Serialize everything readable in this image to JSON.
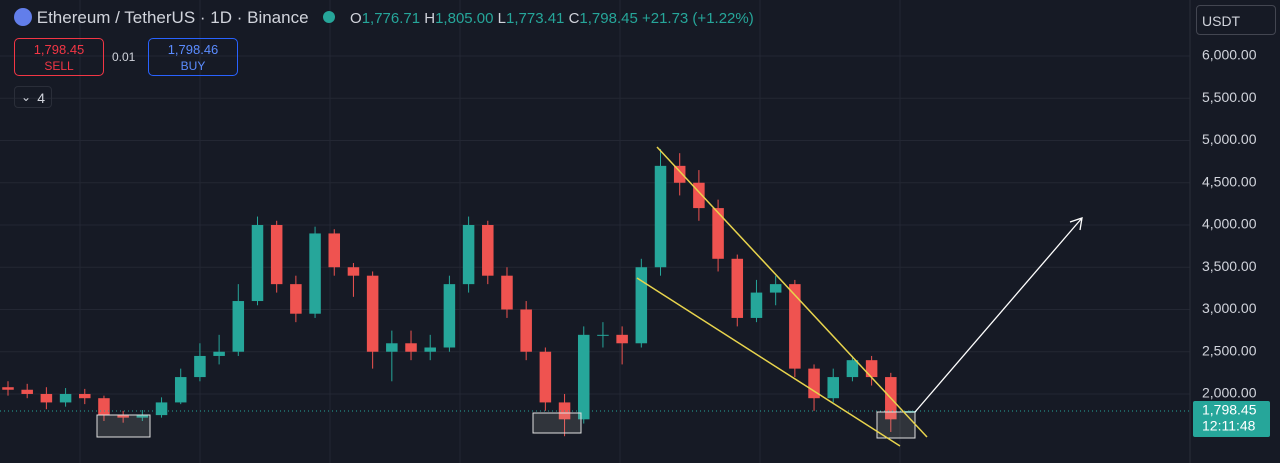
{
  "chart_data": {
    "type": "candlestick",
    "title": "Ethereum / TetherUS · 1D · Binance",
    "ohlc_header": {
      "o_label": "O",
      "o": "1,776.71",
      "h_label": "H",
      "h": "1,805.00",
      "l_label": "L",
      "l": "1,773.41",
      "c_label": "C",
      "c": "1,798.45",
      "change": "+21.73 (+1.22%)"
    },
    "trade": {
      "sell_price": "1,798.45",
      "sell": "SELL",
      "spread": "0.01",
      "buy_price": "1,798.46",
      "buy": "BUY"
    },
    "indicators_count": "4",
    "currency": "USDT",
    "last_price": {
      "value": 1798.45,
      "label": "1,798.45"
    },
    "countdown": "12:11:48",
    "up_color": "#26a69a",
    "down_color": "#ef5350",
    "open": [
      2080,
      2050,
      2000,
      1900,
      2000,
      1950,
      1750,
      1720,
      1750,
      1900,
      2200,
      2450,
      2500,
      3100,
      4000,
      3300,
      2950,
      3900,
      3500,
      3400,
      2500,
      2600,
      2500,
      2550,
      3300,
      4000,
      3400,
      3000,
      2500,
      1900,
      1700,
      2700,
      2700,
      2600,
      3500,
      4700,
      4500,
      4200,
      3600,
      2900,
      3200,
      3300,
      2300,
      1950,
      2200,
      2400,
      2200,
      1776.71
    ],
    "high": [
      2150,
      2120,
      2080,
      2070,
      2060,
      1980,
      1800,
      1810,
      1960,
      2300,
      2600,
      2700,
      3300,
      4100,
      4050,
      3400,
      3980,
      3950,
      3550,
      3450,
      2750,
      2750,
      2700,
      3400,
      4100,
      4050,
      3500,
      3100,
      2550,
      2000,
      2800,
      2850,
      2800,
      3600,
      4900,
      4850,
      4650,
      4300,
      3650,
      3350,
      3400,
      3350,
      2350,
      2300,
      2450,
      2450,
      2250,
      1805
    ],
    "low": [
      1980,
      1950,
      1820,
      1850,
      1880,
      1680,
      1660,
      1680,
      1720,
      1880,
      2150,
      2350,
      2450,
      3050,
      3200,
      2850,
      2900,
      3400,
      3150,
      2300,
      2150,
      2400,
      2400,
      2500,
      3200,
      3300,
      2900,
      2400,
      1800,
      1500,
      1650,
      2550,
      2350,
      2550,
      3400,
      4350,
      4050,
      3450,
      2800,
      2850,
      3050,
      2200,
      1800,
      1900,
      2150,
      2100,
      1550,
      1773.41
    ],
    "close": [
      2050,
      2000,
      1900,
      2000,
      1950,
      1750,
      1720,
      1750,
      1900,
      2200,
      2450,
      2500,
      3100,
      4000,
      3300,
      2950,
      3900,
      3500,
      3400,
      2500,
      2600,
      2500,
      2550,
      3300,
      4000,
      3400,
      3000,
      2500,
      1900,
      1700,
      2700,
      2700,
      2600,
      3500,
      4700,
      4500,
      4200,
      3600,
      2900,
      3200,
      3300,
      2300,
      1950,
      2200,
      2400,
      2200,
      1700,
      1798.45
    ],
    "ylim": [
      1183,
      6663
    ],
    "yticks": [
      {
        "value": 2000,
        "label": "2,000.00"
      },
      {
        "value": 2500,
        "label": "2,500.00"
      },
      {
        "value": 3000,
        "label": "3,000.00"
      },
      {
        "value": 3500,
        "label": "3,500.00"
      },
      {
        "value": 4000,
        "label": "4,000.00"
      },
      {
        "value": 4500,
        "label": "4,500.00"
      },
      {
        "value": 5000,
        "label": "5,000.00"
      },
      {
        "value": 5500,
        "label": "5,500.00"
      },
      {
        "value": 6000,
        "label": "6,000.00"
      }
    ],
    "grid": true
  }
}
